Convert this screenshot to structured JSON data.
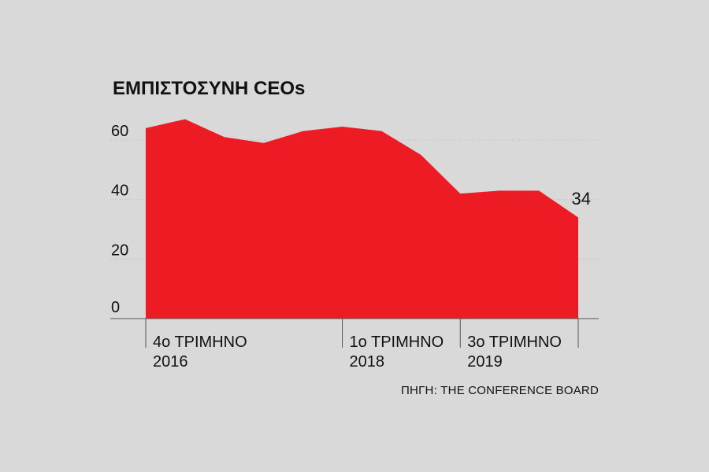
{
  "chart_data": {
    "type": "area",
    "title": "ΕΜΠΙΣΤΟΣΥΝΗ CEOs",
    "x": [
      1,
      2,
      3,
      4,
      5,
      6,
      7,
      8,
      9,
      10,
      11,
      12
    ],
    "values": [
      64,
      67,
      61,
      59,
      63,
      64.5,
      63,
      55,
      42,
      43,
      43,
      34
    ],
    "ylim": [
      0,
      64
    ],
    "yticks": [
      0,
      20,
      40,
      60
    ],
    "xticks": [
      {
        "x": 1,
        "line1": "4ο ΤΡΙΜΗΝΟ",
        "line2": "2016"
      },
      {
        "x": 6,
        "line1": "1ο ΤΡΙΜΗΝΟ",
        "line2": "2018"
      },
      {
        "x": 9,
        "line1": "3ο ΤΡΙΜΗΝΟ",
        "line2": "2019"
      }
    ],
    "end_label": "34",
    "grid": true,
    "source": "ΠΗΓΗ: THE CONFERENCE BOARD",
    "colors": {
      "fill": "#ed1c24",
      "background": "#d9d9d9",
      "axis": "#555555",
      "grid": "#bdbdbd"
    }
  }
}
